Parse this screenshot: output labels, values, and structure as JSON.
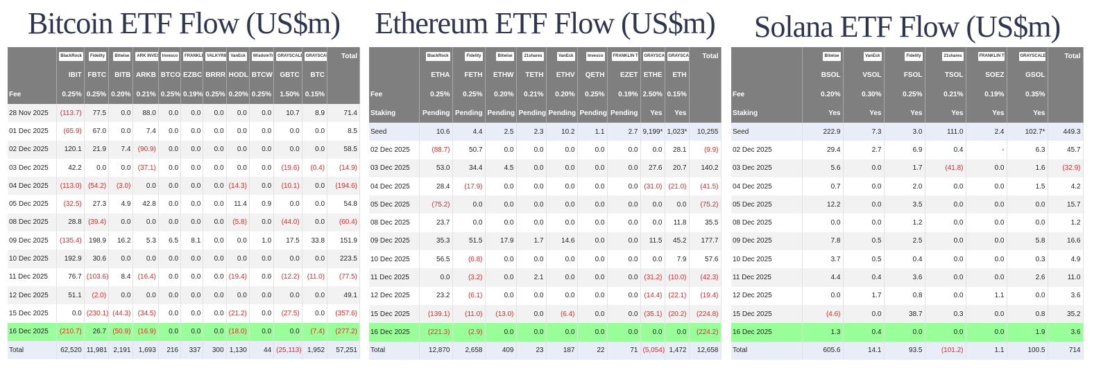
{
  "colors": {
    "negative": "#e8262a",
    "header": "#7f7f7f",
    "highlight": "#99ff99",
    "seed_total": "#e8edf7"
  },
  "tables": [
    {
      "title": "Bitcoin ETF Flow (US$m)",
      "logos": [
        "BlackRock",
        "Fidelity",
        "Bitwise",
        "ARK INVEST",
        "Invesco",
        "FRANKLIN TEMPLETON",
        "VALKYRIE",
        "VanEck",
        "WisdomTree",
        "GRAYSCALE",
        "GRAYSCALE"
      ],
      "total_label": "Total",
      "tickers": [
        "IBIT",
        "FBTC",
        "BITB",
        "ARKB",
        "BTCO",
        "EZBC",
        "BRRR",
        "HODL",
        "BTCW",
        "GBTC",
        "BTC"
      ],
      "meta_rows": [
        {
          "label": "Fee",
          "values": [
            "0.25%",
            "0.25%",
            "0.20%",
            "0.21%",
            "0.25%",
            "0.19%",
            "0.25%",
            "0.20%",
            "0.25%",
            "1.50%",
            "0.15%"
          ]
        }
      ],
      "rows": [
        {
          "label": "28 Nov 2025",
          "values": [
            "(113.7)",
            "77.5",
            "0.0",
            "88.0",
            "0.0",
            "0.0",
            "0.0",
            "0.0",
            "0.0",
            "10.7",
            "8.9",
            "71.4"
          ]
        },
        {
          "label": "01 Dec 2025",
          "values": [
            "(65.9)",
            "67.0",
            "0.0",
            "7.4",
            "0.0",
            "0.0",
            "0.0",
            "0.0",
            "0.0",
            "0.0",
            "0.0",
            "8.5"
          ]
        },
        {
          "label": "02 Dec 2025",
          "values": [
            "120.1",
            "21.9",
            "7.4",
            "(90.9)",
            "0.0",
            "0.0",
            "0.0",
            "0.0",
            "0.0",
            "0.0",
            "0.0",
            "58.5"
          ]
        },
        {
          "label": "03 Dec 2025",
          "values": [
            "42.2",
            "0.0",
            "0.0",
            "(37.1)",
            "0.0",
            "0.0",
            "0.0",
            "0.0",
            "0.0",
            "(19.6)",
            "(0.4)",
            "(14.9)"
          ]
        },
        {
          "label": "04 Dec 2025",
          "values": [
            "(113.0)",
            "(54.2)",
            "(3.0)",
            "0.0",
            "0.0",
            "0.0",
            "0.0",
            "(14.3)",
            "0.0",
            "(10.1)",
            "0.0",
            "(194.6)"
          ]
        },
        {
          "label": "05 Dec 2025",
          "values": [
            "(32.5)",
            "27.3",
            "4.9",
            "42.8",
            "0.0",
            "0.0",
            "0.0",
            "11.4",
            "0.9",
            "0.0",
            "0.0",
            "54.8"
          ]
        },
        {
          "label": "08 Dec 2025",
          "values": [
            "28.8",
            "(39.4)",
            "0.0",
            "0.0",
            "0.0",
            "0.0",
            "0.0",
            "(5.8)",
            "0.0",
            "(44.0)",
            "0.0",
            "(60.4)"
          ]
        },
        {
          "label": "09 Dec 2025",
          "values": [
            "(135.4)",
            "198.9",
            "16.2",
            "5.3",
            "6.5",
            "8.1",
            "0.0",
            "0.0",
            "1.0",
            "17.5",
            "33.8",
            "151.9"
          ]
        },
        {
          "label": "10 Dec 2025",
          "values": [
            "192.9",
            "30.6",
            "0.0",
            "0.0",
            "0.0",
            "0.0",
            "0.0",
            "0.0",
            "0.0",
            "0.0",
            "0.0",
            "223.5"
          ]
        },
        {
          "label": "11 Dec 2025",
          "values": [
            "76.7",
            "(103.6)",
            "8.4",
            "(16.4)",
            "0.0",
            "0.0",
            "0.0",
            "(19.4)",
            "0.0",
            "(12.2)",
            "(11.0)",
            "(77.5)"
          ]
        },
        {
          "label": "12 Dec 2025",
          "values": [
            "51.1",
            "(2.0)",
            "0.0",
            "0.0",
            "0.0",
            "0.0",
            "0.0",
            "0.0",
            "0.0",
            "0.0",
            "0.0",
            "49.1"
          ]
        },
        {
          "label": "15 Dec 2025",
          "values": [
            "0.0",
            "(230.1)",
            "(44.3)",
            "(34.5)",
            "0.0",
            "0.0",
            "0.0",
            "(21.2)",
            "0.0",
            "(27.5)",
            "0.0",
            "(357.6)"
          ]
        },
        {
          "label": "16 Dec 2025",
          "highlight": true,
          "values": [
            "(210.7)",
            "26.7",
            "(50.9)",
            "(16.9)",
            "0.0",
            "0.0",
            "0.0",
            "(18.0)",
            "0.0",
            "0.0",
            "(7.4)",
            "(277.2)"
          ]
        }
      ],
      "total_row": {
        "label": "Total",
        "values": [
          "62,520",
          "11,981",
          "2,191",
          "1,693",
          "216",
          "337",
          "300",
          "1,130",
          "44",
          "(25,113)",
          "1,952",
          "57,251"
        ]
      }
    },
    {
      "title": "Ethereum ETF Flow (US$m)",
      "logos": [
        "BlackRock",
        "Fidelity",
        "Bitwise",
        "21shares",
        "VanEck",
        "Invesco",
        "FRANKLIN TEMPLETON",
        "GRAYSCALE",
        "GRAYSCALE"
      ],
      "total_label": "Total",
      "tickers": [
        "ETHA",
        "FETH",
        "ETHW",
        "TETH",
        "ETHV",
        "QETH",
        "EZET",
        "ETHE",
        "ETH"
      ],
      "meta_rows": [
        {
          "label": "Fee",
          "values": [
            "0.25%",
            "0.25%",
            "0.20%",
            "0.21%",
            "0.20%",
            "0.25%",
            "0.19%",
            "2.50%",
            "0.15%"
          ]
        },
        {
          "label": "Staking",
          "values": [
            "Pending",
            "Pending",
            "Pending",
            "Pending",
            "Pending",
            "Pending",
            "Pending",
            "Yes",
            "Yes"
          ]
        }
      ],
      "rows": [
        {
          "label": "Seed",
          "seed": true,
          "values": [
            "10.6",
            "4.4",
            "2.5",
            "2.3",
            "10.2",
            "1.1",
            "2.7",
            "9,199*",
            "1,023*",
            "10,255"
          ]
        },
        {
          "label": "02 Dec 2025",
          "values": [
            "(88.7)",
            "50.7",
            "0.0",
            "0.0",
            "0.0",
            "0.0",
            "0.0",
            "0.0",
            "28.1",
            "(9.9)"
          ]
        },
        {
          "label": "03 Dec 2025",
          "values": [
            "53.0",
            "34.4",
            "4.5",
            "0.0",
            "0.0",
            "0.0",
            "0.0",
            "27.6",
            "20.7",
            "140.2"
          ]
        },
        {
          "label": "04 Dec 2025",
          "values": [
            "28.4",
            "(17.9)",
            "0.0",
            "0.0",
            "0.0",
            "0.0",
            "0.0",
            "(31.0)",
            "(21.0)",
            "(41.5)"
          ]
        },
        {
          "label": "05 Dec 2025",
          "values": [
            "(75.2)",
            "0.0",
            "0.0",
            "0.0",
            "0.0",
            "0.0",
            "0.0",
            "0.0",
            "0.0",
            "(75.2)"
          ]
        },
        {
          "label": "08 Dec 2025",
          "values": [
            "23.7",
            "0.0",
            "0.0",
            "0.0",
            "0.0",
            "0.0",
            "0.0",
            "0.0",
            "11.8",
            "35.5"
          ]
        },
        {
          "label": "09 Dec 2025",
          "values": [
            "35.3",
            "51.5",
            "17.9",
            "1.7",
            "14.6",
            "0.0",
            "0.0",
            "11.5",
            "45.2",
            "177.7"
          ]
        },
        {
          "label": "10 Dec 2025",
          "values": [
            "56.5",
            "(6.8)",
            "0.0",
            "0.0",
            "0.0",
            "0.0",
            "0.0",
            "0.0",
            "7.9",
            "57.6"
          ]
        },
        {
          "label": "11 Dec 2025",
          "values": [
            "0.0",
            "(3.2)",
            "0.0",
            "2.1",
            "0.0",
            "0.0",
            "0.0",
            "(31.2)",
            "(10.0)",
            "(42.3)"
          ]
        },
        {
          "label": "12 Dec 2025",
          "values": [
            "23.2",
            "(6.1)",
            "0.0",
            "0.0",
            "0.0",
            "0.0",
            "0.0",
            "(14.4)",
            "(22.1)",
            "(19.4)"
          ]
        },
        {
          "label": "15 Dec 2025",
          "values": [
            "(139.1)",
            "(11.0)",
            "(13.0)",
            "0.0",
            "(6.4)",
            "0.0",
            "0.0",
            "(35.1)",
            "(20.2)",
            "(224.8)"
          ]
        },
        {
          "label": "16 Dec 2025",
          "highlight": true,
          "values": [
            "(221.3)",
            "(2.9)",
            "0.0",
            "0.0",
            "0.0",
            "0.0",
            "0.0",
            "0.0",
            "0.0",
            "(224.2)"
          ]
        }
      ],
      "total_row": {
        "label": "Total",
        "values": [
          "12,870",
          "2,658",
          "409",
          "23",
          "187",
          "22",
          "71",
          "(5,054)",
          "1,472",
          "12,658"
        ]
      }
    },
    {
      "title": "Solana ETF Flow (US$m)",
      "logos": [
        "Bitwise",
        "VanEck",
        "Fidelity",
        "21shares",
        "FRANKLIN TEMPLETON",
        "GRAYSCALE"
      ],
      "total_label": "Total",
      "tickers": [
        "BSOL",
        "VSOL",
        "FSOL",
        "TSOL",
        "SOEZ",
        "GSOL"
      ],
      "meta_rows": [
        {
          "label": "Fee",
          "values": [
            "0.20%",
            "0.30%",
            "0.25%",
            "0.21%",
            "0.19%",
            "0.35%"
          ]
        },
        {
          "label": "Staking",
          "values": [
            "Yes",
            "Yes",
            "Yes",
            "Yes",
            "Yes",
            "Yes"
          ]
        }
      ],
      "rows": [
        {
          "label": "Seed",
          "seed": true,
          "values": [
            "222.9",
            "7.3",
            "3.0",
            "111.0",
            "2.4",
            "102.7*",
            "449.3"
          ]
        },
        {
          "label": "02 Dec 2025",
          "values": [
            "29.4",
            "2.7",
            "6.9",
            "0.4",
            "-",
            "6.3",
            "45.7"
          ]
        },
        {
          "label": "03 Dec 2025",
          "values": [
            "5.6",
            "0.0",
            "1.7",
            "(41.8)",
            "0.0",
            "1.6",
            "(32.9)"
          ]
        },
        {
          "label": "04 Dec 2025",
          "values": [
            "0.7",
            "0.0",
            "2.0",
            "0.0",
            "0.0",
            "1.5",
            "4.2"
          ]
        },
        {
          "label": "05 Dec 2025",
          "values": [
            "12.2",
            "0.0",
            "3.5",
            "0.0",
            "0.0",
            "0.0",
            "15.7"
          ]
        },
        {
          "label": "08 Dec 2025",
          "values": [
            "0.0",
            "0.0",
            "1.2",
            "0.0",
            "0.0",
            "0.0",
            "1.2"
          ]
        },
        {
          "label": "09 Dec 2025",
          "values": [
            "7.8",
            "0.5",
            "2.5",
            "0.0",
            "0.0",
            "5.8",
            "16.6"
          ]
        },
        {
          "label": "10 Dec 2025",
          "values": [
            "3.7",
            "0.5",
            "0.4",
            "0.0",
            "0.0",
            "0.3",
            "4.9"
          ]
        },
        {
          "label": "11 Dec 2025",
          "values": [
            "4.4",
            "0.4",
            "3.6",
            "0.0",
            "0.0",
            "2.6",
            "11.0"
          ]
        },
        {
          "label": "12 Dec 2025",
          "values": [
            "0.0",
            "1.7",
            "0.8",
            "0.0",
            "1.1",
            "0.0",
            "3.6"
          ]
        },
        {
          "label": "15 Dec 2025",
          "values": [
            "(4.6)",
            "0.0",
            "38.7",
            "0.3",
            "0.0",
            "0.8",
            "35.2"
          ]
        },
        {
          "label": "16 Dec 2025",
          "highlight": true,
          "values": [
            "1.3",
            "0.4",
            "0.0",
            "0.0",
            "0.0",
            "1.9",
            "3.6"
          ]
        }
      ],
      "total_row": {
        "label": "Total",
        "values": [
          "605.6",
          "14.1",
          "93.5",
          "(101.2)",
          "1.1",
          "100.5",
          "714"
        ]
      }
    }
  ]
}
